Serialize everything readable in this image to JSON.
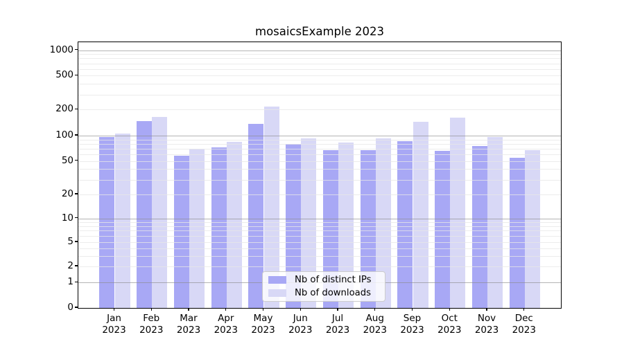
{
  "figure": {
    "title": "mosaicsExample 2023"
  },
  "chart_data": {
    "type": "bar",
    "title": "mosaicsExample 2023",
    "x": {
      "categories": [
        "Jan",
        "Feb",
        "Mar",
        "Apr",
        "May",
        "Jun",
        "Jul",
        "Aug",
        "Sep",
        "Oct",
        "Nov",
        "Dec"
      ],
      "year_label": "2023"
    },
    "y_axis": {
      "scale": "log above 1, linear 0-1 (symlog-like)",
      "ticks": [
        0,
        1,
        2,
        5,
        10,
        20,
        50,
        100,
        200,
        500,
        1000
      ],
      "range": [
        0,
        1270
      ]
    },
    "series": [
      {
        "name": "Nb of distinct IPs",
        "color": "#a8a8f5",
        "values": [
          96,
          146,
          58,
          72,
          137,
          80,
          67,
          67,
          86,
          66,
          75,
          55
        ]
      },
      {
        "name": "Nb of downloads",
        "color": "#d8d8f6",
        "values": [
          106,
          163,
          70,
          85,
          217,
          93,
          83,
          92,
          145,
          160,
          97,
          67
        ]
      }
    ],
    "gridlines": {
      "major": [
        1,
        10,
        100,
        1000
      ],
      "minor": [
        2,
        3,
        4,
        5,
        6,
        7,
        8,
        9,
        20,
        30,
        40,
        50,
        60,
        70,
        80,
        90,
        200,
        300,
        400,
        500,
        600,
        700,
        800,
        900
      ]
    },
    "legend": {
      "position": "lower center",
      "items": [
        "Nb of distinct IPs",
        "Nb of downloads"
      ]
    }
  }
}
